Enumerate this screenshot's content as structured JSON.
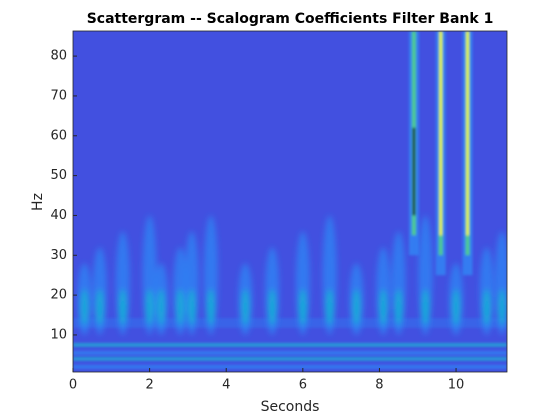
{
  "chart_data": {
    "type": "scalogram",
    "title": "Scattergram -- Scalogram Coefficients Filter Bank 1",
    "x_label": "Seconds",
    "y_label": "Hz",
    "xlim": [
      0,
      11.33
    ],
    "ylim": [
      0.7,
      86.3
    ],
    "xticks": [
      0,
      2,
      4,
      6,
      8,
      10
    ],
    "yticks": [
      10,
      20,
      30,
      40,
      50,
      60,
      70,
      80
    ],
    "colormap": [
      "#3e26a8",
      "#4250e0",
      "#2e87f5",
      "#17b4d2",
      "#4fcb8f",
      "#c5c024",
      "#f9fb15"
    ]
  }
}
